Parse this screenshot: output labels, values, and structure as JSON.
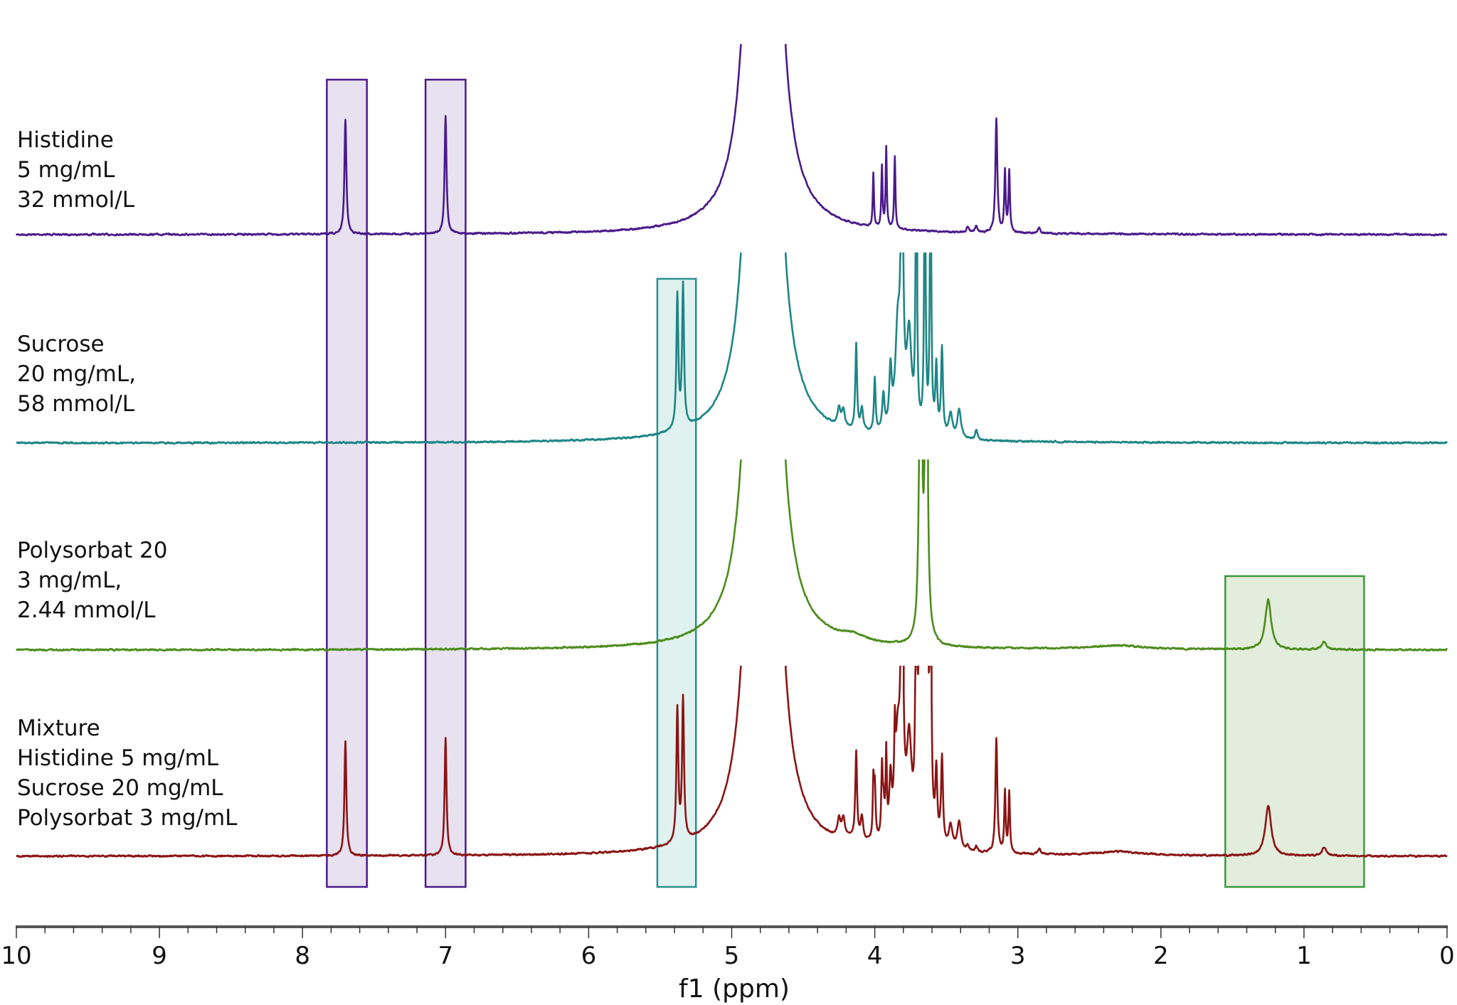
{
  "chart_data": {
    "type": "line",
    "subtype": "stacked NMR spectra",
    "xlabel": "f1 (ppm)",
    "xlim": [
      10,
      0
    ],
    "x_reversed": true,
    "tick_labels": [
      "10",
      "9",
      "8",
      "7",
      "6",
      "5",
      "4",
      "3",
      "2",
      "1",
      "0"
    ],
    "minor_tick_step_ppm": 0.2,
    "grid": false,
    "peak_format": "[ppm, relative intensity, half-width ppm]",
    "series": [
      {
        "label_lines": [
          "Histidine",
          "5 mg/mL",
          "32 mmol/L"
        ],
        "color": "#4a1a8a",
        "peaks": [
          [
            7.7,
            0.6,
            0.008
          ],
          [
            7.0,
            0.62,
            0.008
          ],
          [
            4.01,
            0.28,
            0.005
          ],
          [
            3.95,
            0.32,
            0.005
          ],
          [
            3.92,
            0.42,
            0.005
          ],
          [
            3.86,
            0.38,
            0.005
          ],
          [
            3.15,
            0.6,
            0.008
          ],
          [
            3.09,
            0.32,
            0.006
          ],
          [
            3.06,
            0.32,
            0.006
          ],
          [
            3.35,
            0.03,
            0.01
          ],
          [
            3.29,
            0.03,
            0.01
          ],
          [
            2.85,
            0.03,
            0.01
          ],
          [
            4.78,
            40,
            0.025
          ]
        ]
      },
      {
        "label_lines": [
          "Sucrose",
          "20 mg/mL,",
          "58 mmol/L"
        ],
        "color": "#1e8585",
        "peaks": [
          [
            5.38,
            0.7,
            0.008
          ],
          [
            5.34,
            0.74,
            0.008
          ],
          [
            4.25,
            0.09,
            0.012
          ],
          [
            4.22,
            0.09,
            0.012
          ],
          [
            4.13,
            0.45,
            0.007
          ],
          [
            4.09,
            0.12,
            0.01
          ],
          [
            4.0,
            0.28,
            0.007
          ],
          [
            3.94,
            0.18,
            0.01
          ],
          [
            3.89,
            0.3,
            0.01
          ],
          [
            3.84,
            0.5,
            0.02
          ],
          [
            3.81,
            1.5,
            0.01
          ],
          [
            3.76,
            0.5,
            0.02
          ],
          [
            3.71,
            1.5,
            0.006
          ],
          [
            3.65,
            1.5,
            0.006
          ],
          [
            3.61,
            1.5,
            0.006
          ],
          [
            3.57,
            0.35,
            0.008
          ],
          [
            3.53,
            0.45,
            0.008
          ],
          [
            3.47,
            0.12,
            0.015
          ],
          [
            3.41,
            0.15,
            0.015
          ],
          [
            3.29,
            0.05,
            0.01
          ],
          [
            4.78,
            40,
            0.025
          ]
        ]
      },
      {
        "label_lines": [
          "Polysorbat 20",
          "3 mg/mL,",
          "2.44 mmol/L"
        ],
        "color": "#4c8c1c",
        "peaks": [
          [
            3.68,
            2,
            0.01
          ],
          [
            3.64,
            2,
            0.01
          ],
          [
            1.25,
            0.26,
            0.025
          ],
          [
            0.86,
            0.04,
            0.02
          ],
          [
            4.15,
            0.03,
            0.1
          ],
          [
            2.3,
            0.02,
            0.2
          ],
          [
            4.78,
            40,
            0.025
          ]
        ]
      },
      {
        "label_lines": [
          "Mixture",
          "Histidine 5 mg/mL",
          "Sucrose 20 mg/mL",
          "Polysorbat 3 mg/mL"
        ],
        "color": "#8a1414",
        "peaks": [
          [
            7.7,
            0.6,
            0.008
          ],
          [
            7.0,
            0.62,
            0.008
          ],
          [
            4.01,
            0.28,
            0.005
          ],
          [
            3.95,
            0.32,
            0.005
          ],
          [
            3.92,
            0.42,
            0.005
          ],
          [
            3.86,
            0.38,
            0.005
          ],
          [
            3.15,
            0.6,
            0.008
          ],
          [
            3.09,
            0.32,
            0.006
          ],
          [
            3.06,
            0.32,
            0.006
          ],
          [
            3.35,
            0.03,
            0.01
          ],
          [
            3.29,
            0.03,
            0.01
          ],
          [
            2.85,
            0.03,
            0.01
          ],
          [
            5.38,
            0.7,
            0.008
          ],
          [
            5.34,
            0.74,
            0.008
          ],
          [
            4.25,
            0.09,
            0.012
          ],
          [
            4.22,
            0.09,
            0.012
          ],
          [
            4.13,
            0.45,
            0.007
          ],
          [
            4.09,
            0.12,
            0.01
          ],
          [
            4.0,
            0.28,
            0.007
          ],
          [
            3.94,
            0.18,
            0.01
          ],
          [
            3.89,
            0.3,
            0.01
          ],
          [
            3.84,
            0.5,
            0.02
          ],
          [
            3.81,
            1.5,
            0.01
          ],
          [
            3.76,
            0.5,
            0.02
          ],
          [
            3.71,
            1.5,
            0.006
          ],
          [
            3.65,
            1.5,
            0.006
          ],
          [
            3.61,
            1.5,
            0.006
          ],
          [
            3.57,
            0.35,
            0.008
          ],
          [
            3.53,
            0.45,
            0.008
          ],
          [
            3.47,
            0.12,
            0.015
          ],
          [
            3.41,
            0.15,
            0.015
          ],
          [
            3.68,
            2,
            0.01
          ],
          [
            3.64,
            2,
            0.01
          ],
          [
            1.25,
            0.26,
            0.025
          ],
          [
            0.86,
            0.04,
            0.02
          ],
          [
            4.15,
            0.03,
            0.1
          ],
          [
            2.3,
            0.02,
            0.2
          ],
          [
            4.78,
            40,
            0.025
          ]
        ]
      }
    ],
    "highlight_regions": [
      {
        "ppm": [
          7.83,
          7.55
        ],
        "fill": "#e7e1f0",
        "stroke": "#4a1a8a",
        "from_series": 0
      },
      {
        "ppm": [
          7.14,
          6.86
        ],
        "fill": "#e7e1f0",
        "stroke": "#4a1a8a",
        "from_series": 0
      },
      {
        "ppm": [
          5.52,
          5.25
        ],
        "fill": "#e0f2f0",
        "stroke": "#2a9090",
        "from_series": 1
      },
      {
        "ppm": [
          1.55,
          0.58
        ],
        "fill": "#e3eddb",
        "stroke": "#3a9a3a",
        "from_series": 2
      }
    ]
  }
}
